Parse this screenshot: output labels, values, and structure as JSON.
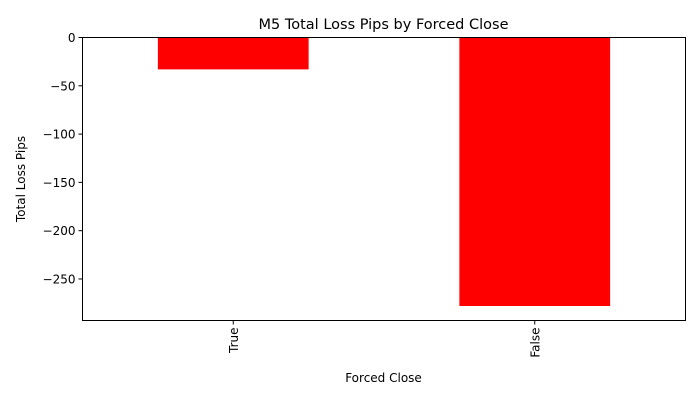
{
  "chart_data": {
    "type": "bar",
    "title": "M5 Total Loss Pips by Forced Close",
    "xlabel": "Forced Close",
    "ylabel": "Total Loss Pips",
    "categories": [
      "True",
      "False"
    ],
    "values": [
      -33,
      -278
    ],
    "ylim": [
      -293,
      0
    ],
    "yticks": [
      0,
      -50,
      -100,
      -150,
      -200,
      -250
    ],
    "ytick_labels": [
      "0",
      "−50",
      "−100",
      "−150",
      "−200",
      "−250"
    ],
    "bar_color": "#ff0000",
    "grid": false,
    "legend": "none",
    "xtick_rotation": 90
  }
}
